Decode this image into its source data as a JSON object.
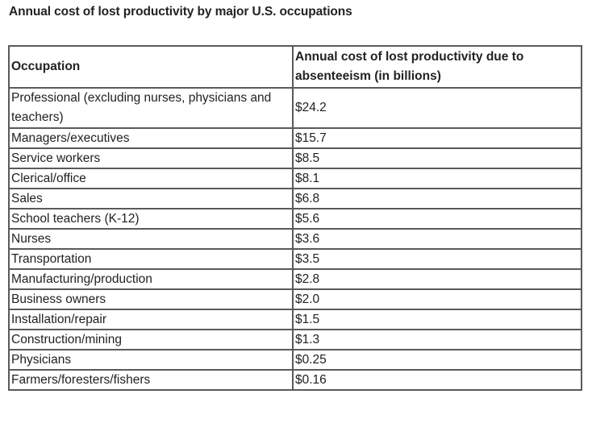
{
  "caption": "Annual cost of lost productivity by major U.S. occupations",
  "table": {
    "headers": [
      "Occupation",
      "Annual cost of lost productivity due to absenteeism (in billions)"
    ],
    "rows": [
      {
        "occupation": "Professional (excluding nurses, physicians and teachers)",
        "cost": "$24.2"
      },
      {
        "occupation": "Managers/executives",
        "cost": "$15.7"
      },
      {
        "occupation": "Service workers",
        "cost": "$8.5"
      },
      {
        "occupation": "Clerical/office",
        "cost": "$8.1"
      },
      {
        "occupation": "Sales",
        "cost": "$6.8"
      },
      {
        "occupation": "School teachers (K-12)",
        "cost": "$5.6"
      },
      {
        "occupation": "Nurses",
        "cost": "$3.6"
      },
      {
        "occupation": "Transportation",
        "cost": "$3.5"
      },
      {
        "occupation": "Manufacturing/production",
        "cost": "$2.8"
      },
      {
        "occupation": "Business owners",
        "cost": "$2.0"
      },
      {
        "occupation": "Installation/repair",
        "cost": "$1.5"
      },
      {
        "occupation": "Construction/mining",
        "cost": "$1.3"
      },
      {
        "occupation": "Physicians",
        "cost": "$0.25"
      },
      {
        "occupation": "Farmers/foresters/fishers",
        "cost": "$0.16"
      }
    ]
  }
}
